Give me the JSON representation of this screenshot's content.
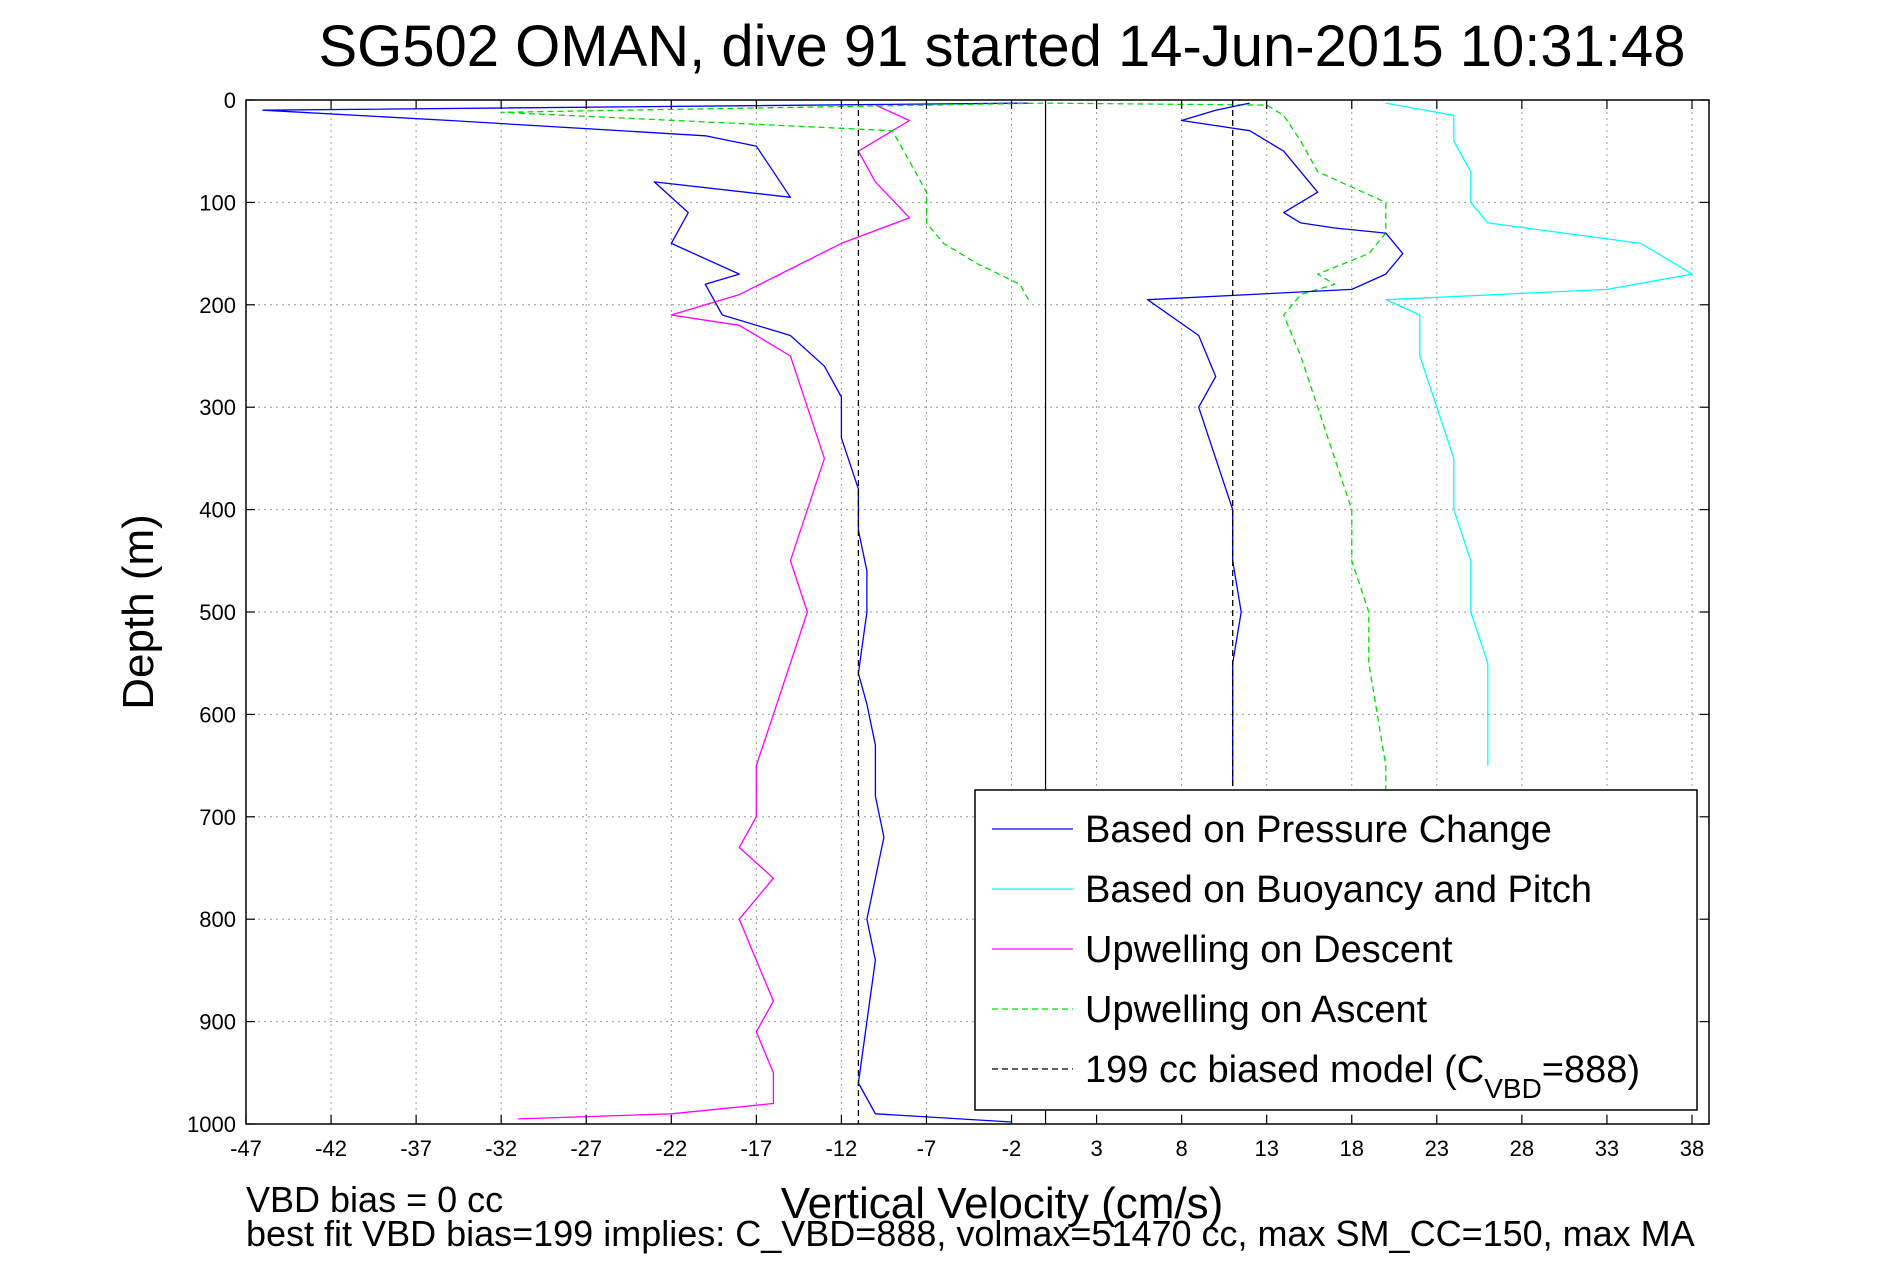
{
  "chart_data": {
    "type": "line",
    "title": "SG502 OMAN, dive 91 started 14-Jun-2015 10:31:48",
    "xlabel": "Vertical Velocity (cm/s)",
    "ylabel": "Depth (m)",
    "xlim": [
      -47,
      39
    ],
    "ylim": [
      0,
      1000
    ],
    "y_reversed": true,
    "grid": true,
    "xticks": [
      -47,
      -42,
      -37,
      -32,
      -27,
      -22,
      -17,
      -12,
      -7,
      -2,
      3,
      8,
      13,
      18,
      23,
      28,
      33,
      38
    ],
    "yticks": [
      0,
      100,
      200,
      300,
      400,
      500,
      600,
      700,
      800,
      900,
      1000
    ],
    "legend_position": "bottom-right",
    "legend": [
      {
        "label": "Based on Pressure Change",
        "color": "#0000ff",
        "dash": "solid"
      },
      {
        "label": "Based on Buoyancy and Pitch",
        "color": "#00ffff",
        "dash": "solid"
      },
      {
        "label": "Upwelling on Descent",
        "color": "#ff00ff",
        "dash": "solid"
      },
      {
        "label": "Upwelling on Ascent",
        "color": "#00dd00",
        "dash": "dashed"
      },
      {
        "label_main": "199 cc biased model (C",
        "label_sub": "VBD",
        "label_end": "=888)",
        "color": "#000000",
        "dash": "dashed"
      }
    ],
    "series": [
      {
        "name": "Based on Pressure Change",
        "color": "#0000ff",
        "dash": "solid",
        "x": [
          -1,
          -46,
          -35,
          -20,
          -17,
          -16,
          -15,
          -23,
          -21,
          -22,
          -18,
          -20,
          -19,
          -15,
          -13,
          -12,
          -12,
          -11,
          -11,
          -10.5,
          -10.5,
          -11,
          -10.5,
          -10,
          -10,
          -9.5,
          -10,
          -10.5,
          -10,
          -10.5,
          -11,
          -10,
          -2
        ],
        "y": [
          3,
          10,
          20,
          35,
          45,
          70,
          95,
          80,
          110,
          140,
          170,
          180,
          210,
          230,
          260,
          290,
          330,
          380,
          420,
          460,
          500,
          560,
          590,
          630,
          680,
          720,
          760,
          800,
          840,
          900,
          960,
          990,
          998
        ]
      },
      {
        "name": "Upwelling on Descent",
        "color": "#ff00ff",
        "dash": "solid",
        "x": [
          -10,
          -8,
          -11,
          -10,
          -8,
          -12,
          -15,
          -18,
          -20,
          -22,
          -18,
          -15,
          -14,
          -13,
          -14,
          -15,
          -14,
          -15,
          -16,
          -17,
          -17,
          -18,
          -16,
          -18,
          -17,
          -16,
          -17,
          -16,
          -16,
          -22,
          -31
        ],
        "y": [
          5,
          20,
          50,
          80,
          115,
          140,
          165,
          190,
          200,
          210,
          220,
          250,
          300,
          350,
          400,
          450,
          500,
          550,
          600,
          650,
          700,
          730,
          760,
          800,
          840,
          880,
          910,
          950,
          980,
          990,
          995
        ]
      },
      {
        "name": "Upwelling on Ascent",
        "color": "#00dd00",
        "dash": "dashed",
        "x": [
          -1,
          -1.5,
          -4,
          -6,
          -7,
          -7,
          -8,
          -9,
          -32,
          0,
          13,
          14,
          15,
          16,
          20,
          20,
          19,
          16,
          17,
          15,
          14,
          15,
          16,
          17,
          18,
          18,
          19,
          19,
          19.5,
          20,
          20
        ],
        "y": [
          195,
          180,
          160,
          140,
          120,
          90,
          60,
          30,
          12,
          3,
          5,
          15,
          40,
          70,
          100,
          130,
          150,
          170,
          180,
          190,
          210,
          250,
          300,
          350,
          400,
          450,
          500,
          550,
          600,
          650,
          680
        ]
      },
      {
        "name": "Based on Buoyancy and Pitch",
        "color": "#00ffff",
        "dash": "solid",
        "x": [
          20,
          24,
          24,
          25,
          25,
          26,
          35,
          38,
          33,
          20,
          22,
          22,
          23,
          24,
          24,
          25,
          25,
          26,
          26,
          26
        ],
        "y": [
          3,
          15,
          40,
          70,
          100,
          120,
          140,
          170,
          185,
          195,
          210,
          250,
          300,
          350,
          400,
          450,
          500,
          550,
          600,
          650
        ]
      },
      {
        "name": "Based on Pressure Change (ascent)",
        "color": "#0000ff",
        "dash": "solid",
        "x": [
          12,
          10,
          8,
          12,
          14,
          15,
          16,
          14,
          15,
          17,
          20,
          21,
          20,
          18,
          6,
          9,
          10,
          9,
          10,
          11,
          11,
          11.5,
          11,
          11,
          11,
          11
        ],
        "y": [
          3,
          10,
          20,
          30,
          50,
          70,
          90,
          110,
          120,
          125,
          130,
          150,
          170,
          185,
          195,
          230,
          270,
          300,
          350,
          400,
          450,
          500,
          550,
          600,
          650,
          670
        ]
      },
      {
        "name": "199 cc biased model",
        "color": "#000000",
        "dash": "dashed",
        "x": [
          -11,
          -11
        ],
        "y": [
          0,
          1000
        ]
      },
      {
        "name": "199 cc biased model (ascent)",
        "color": "#000000",
        "dash": "dashed",
        "x": [
          11,
          11
        ],
        "y": [
          0,
          670
        ]
      }
    ]
  },
  "footnotes": {
    "line1": "VBD bias = 0 cc",
    "line2": "best fit VBD bias=199 implies: C_VBD=888, volmax=51470 cc, max SM_CC=150, max MA"
  }
}
